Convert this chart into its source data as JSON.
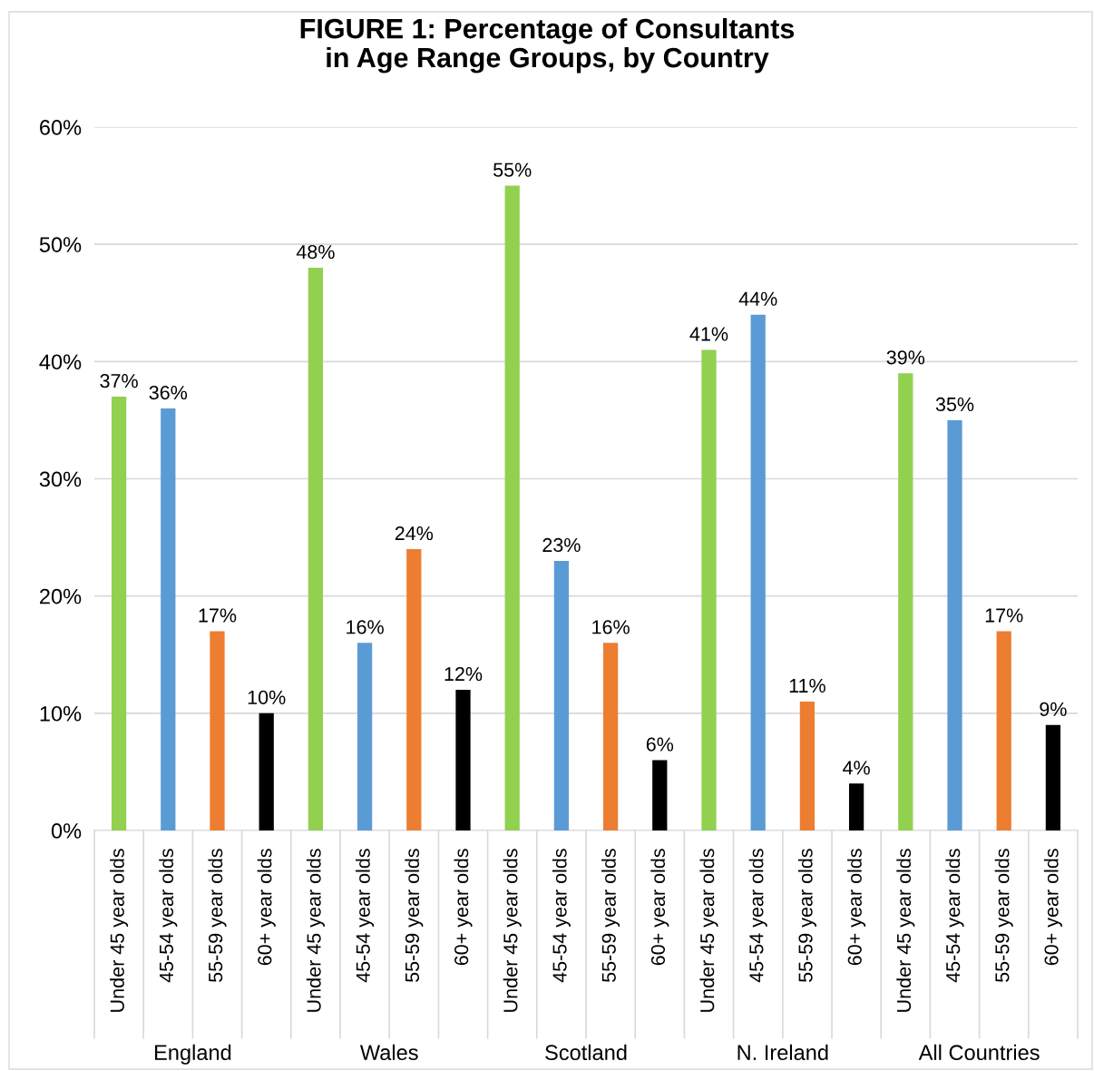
{
  "chart_data": {
    "type": "bar",
    "title": "FIGURE 1: Percentage of Consultants\nin Age Range Groups, by Country",
    "categories": [
      "Under 45 year olds",
      "45-54 year olds",
      "55-59 year olds",
      "60+ year olds",
      "Under 45 year olds",
      "45-54 year olds",
      "55-59 year olds",
      "60+ year olds",
      "Under 45 year olds",
      "45-54 year olds",
      "55-59 year olds",
      "60+ year olds",
      "Under 45 year olds",
      "45-54 year olds",
      "55-59 year olds",
      "60+ year olds",
      "Under 45 year olds",
      "45-54 year olds",
      "55-59 year olds",
      "60+ year olds"
    ],
    "values": [
      37,
      36,
      17,
      10,
      48,
      16,
      24,
      12,
      55,
      23,
      16,
      6,
      41,
      44,
      11,
      4,
      39,
      35,
      17,
      9
    ],
    "value_labels": [
      "37%",
      "36%",
      "17%",
      "10%",
      "48%",
      "16%",
      "24%",
      "12%",
      "55%",
      "23%",
      "16%",
      "6%",
      "41%",
      "44%",
      "11%",
      "4%",
      "39%",
      "35%",
      "17%",
      "9%"
    ],
    "colors": [
      "#92d050",
      "#5b9bd5",
      "#ed7d31",
      "#000000",
      "#92d050",
      "#5b9bd5",
      "#ed7d31",
      "#000000",
      "#92d050",
      "#5b9bd5",
      "#ed7d31",
      "#000000",
      "#92d050",
      "#5b9bd5",
      "#ed7d31",
      "#000000",
      "#92d050",
      "#5b9bd5",
      "#ed7d31",
      "#000000"
    ],
    "annotations": [
      "England",
      "Wales",
      "Scotland",
      "N. Ireland",
      "All Countries"
    ],
    "ylim": [
      0,
      60
    ],
    "yticks": [
      {
        "value": 0,
        "label": "0%"
      },
      {
        "value": 10,
        "label": "10%"
      },
      {
        "value": 20,
        "label": "20%"
      },
      {
        "value": 30,
        "label": "30%"
      },
      {
        "value": 40,
        "label": "40%"
      },
      {
        "value": 50,
        "label": "50%"
      },
      {
        "value": 60,
        "label": "60%"
      }
    ],
    "grid": "y",
    "legend": false
  }
}
